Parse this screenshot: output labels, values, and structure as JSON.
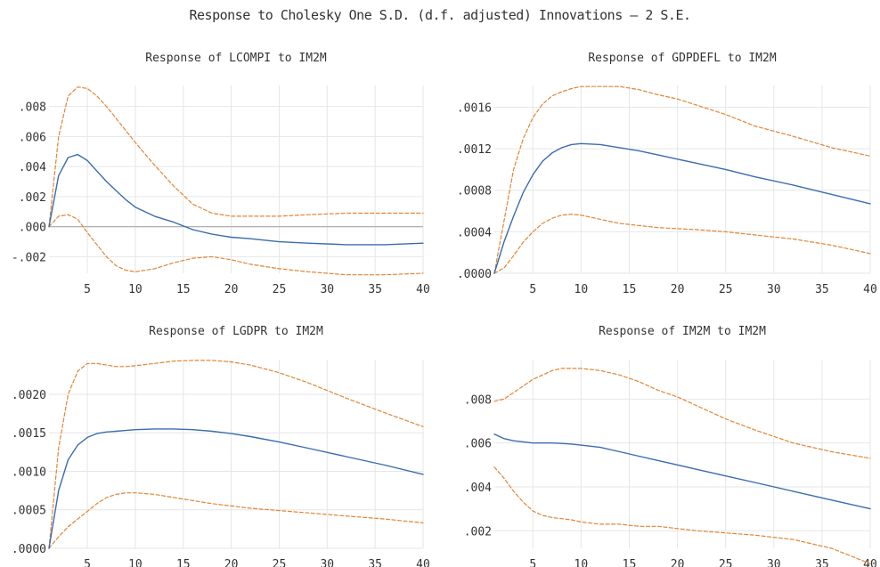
{
  "figure": {
    "title": "Response to Cholesky One S.D. (d.f. adjusted) Innovations – 2 S.E."
  },
  "colors": {
    "response": "#3a6cb0",
    "band": "#e08535",
    "grid": "#e6e6e6",
    "zero": "#a8a8a8",
    "text": "#333333"
  },
  "chart_data": [
    {
      "type": "line",
      "title": "Response of LCOMPI to IM2M",
      "xlim": [
        1,
        40
      ],
      "ylim": [
        -0.0031,
        0.0094
      ],
      "xticks": [
        5,
        10,
        15,
        20,
        25,
        30,
        35,
        40
      ],
      "xtick_labels": [
        "5",
        "10",
        "15",
        "20",
        "25",
        "30",
        "35",
        "40"
      ],
      "yticks": [
        -0.002,
        0,
        0.002,
        0.004,
        0.006,
        0.008
      ],
      "ytick_labels": [
        "-.002",
        ".000",
        ".002",
        ".004",
        ".006",
        ".008"
      ],
      "zero_line": true,
      "x": [
        1,
        2,
        3,
        4,
        5,
        6,
        7,
        8,
        9,
        10,
        12,
        14,
        16,
        18,
        20,
        22,
        25,
        28,
        32,
        36,
        40
      ],
      "series": [
        {
          "role": "response",
          "values": [
            0.0,
            0.0034,
            0.0046,
            0.0048,
            0.0044,
            0.0037,
            0.003,
            0.0024,
            0.0018,
            0.0013,
            0.0007,
            0.0003,
            -0.0002,
            -0.0005,
            -0.0007,
            -0.0008,
            -0.001,
            -0.0011,
            -0.0012,
            -0.0012,
            -0.0011
          ]
        },
        {
          "role": "upper",
          "values": [
            0.0,
            0.006,
            0.0087,
            0.0093,
            0.0092,
            0.0087,
            0.008,
            0.0072,
            0.0064,
            0.0056,
            0.0041,
            0.0027,
            0.0015,
            0.0009,
            0.0007,
            0.0007,
            0.0007,
            0.0008,
            0.0009,
            0.0009,
            0.0009
          ]
        },
        {
          "role": "lower",
          "values": [
            0.0,
            0.0007,
            0.0008,
            0.0005,
            -0.0004,
            -0.0012,
            -0.002,
            -0.0026,
            -0.0029,
            -0.003,
            -0.0028,
            -0.0024,
            -0.0021,
            -0.002,
            -0.0022,
            -0.0025,
            -0.0028,
            -0.003,
            -0.0032,
            -0.0032,
            -0.0031
          ]
        }
      ]
    },
    {
      "type": "line",
      "title": "Response of GDPDEFL to IM2M",
      "xlim": [
        1,
        40
      ],
      "ylim": [
        0,
        0.00181
      ],
      "xticks": [
        5,
        10,
        15,
        20,
        25,
        30,
        35,
        40
      ],
      "xtick_labels": [
        "5",
        "10",
        "15",
        "20",
        "25",
        "30",
        "35",
        "40"
      ],
      "yticks": [
        0,
        0.0004,
        0.0008,
        0.0012,
        0.0016
      ],
      "ytick_labels": [
        ".0000",
        ".0004",
        ".0008",
        ".0012",
        ".0016"
      ],
      "zero_line": false,
      "x": [
        1,
        2,
        3,
        4,
        5,
        6,
        7,
        8,
        9,
        10,
        12,
        14,
        16,
        18,
        20,
        22,
        25,
        28,
        32,
        36,
        40
      ],
      "series": [
        {
          "role": "response",
          "values": [
            0.0,
            0.0003,
            0.00055,
            0.00078,
            0.00095,
            0.00108,
            0.00116,
            0.00121,
            0.00124,
            0.00125,
            0.00124,
            0.00121,
            0.00118,
            0.00114,
            0.0011,
            0.00106,
            0.001,
            0.00093,
            0.00085,
            0.00076,
            0.00067
          ]
        },
        {
          "role": "upper",
          "values": [
            0.0,
            0.0005,
            0.001,
            0.0013,
            0.0015,
            0.00163,
            0.00171,
            0.00175,
            0.00178,
            0.0018,
            0.0018,
            0.0018,
            0.00177,
            0.00172,
            0.00168,
            0.00162,
            0.00153,
            0.00142,
            0.00132,
            0.00121,
            0.00113
          ]
        },
        {
          "role": "lower",
          "values": [
            0.0,
            5e-05,
            0.00017,
            0.0003,
            0.0004,
            0.00048,
            0.00053,
            0.00056,
            0.00057,
            0.00056,
            0.00052,
            0.00048,
            0.00046,
            0.00044,
            0.00043,
            0.00042,
            0.0004,
            0.00037,
            0.00033,
            0.00027,
            0.00019
          ]
        }
      ]
    },
    {
      "type": "line",
      "title": "Response of LGDPR to IM2M",
      "xlim": [
        1,
        40
      ],
      "ylim": [
        0,
        0.00245
      ],
      "xticks": [
        5,
        10,
        15,
        20,
        25,
        30,
        35,
        40
      ],
      "xtick_labels": [
        "5",
        "10",
        "15",
        "20",
        "25",
        "30",
        "35",
        "40"
      ],
      "yticks": [
        0,
        0.0005,
        0.001,
        0.0015,
        0.002
      ],
      "ytick_labels": [
        ".0000",
        ".0005",
        ".0010",
        ".0015",
        ".0020"
      ],
      "zero_line": false,
      "x": [
        1,
        2,
        3,
        4,
        5,
        6,
        7,
        8,
        9,
        10,
        12,
        14,
        16,
        18,
        20,
        22,
        25,
        28,
        32,
        36,
        40
      ],
      "series": [
        {
          "role": "response",
          "values": [
            0.0,
            0.00075,
            0.00115,
            0.00134,
            0.00144,
            0.00149,
            0.00151,
            0.00152,
            0.00153,
            0.00154,
            0.00155,
            0.00155,
            0.00154,
            0.00152,
            0.00149,
            0.00145,
            0.00138,
            0.0013,
            0.00119,
            0.00108,
            0.00096
          ]
        },
        {
          "role": "upper",
          "values": [
            0.0,
            0.0013,
            0.002,
            0.0023,
            0.0024,
            0.0024,
            0.00238,
            0.00236,
            0.00236,
            0.00237,
            0.0024,
            0.00243,
            0.00244,
            0.00244,
            0.00242,
            0.00238,
            0.00228,
            0.00215,
            0.00195,
            0.00176,
            0.00158
          ]
        },
        {
          "role": "lower",
          "values": [
            0.0,
            0.00015,
            0.00028,
            0.00038,
            0.00048,
            0.00058,
            0.00066,
            0.0007,
            0.00072,
            0.00072,
            0.0007,
            0.00066,
            0.00062,
            0.00058,
            0.00055,
            0.00052,
            0.00049,
            0.00046,
            0.00042,
            0.00038,
            0.00033
          ]
        }
      ]
    },
    {
      "type": "line",
      "title": "Response of IM2M to IM2M",
      "xlim": [
        1,
        40
      ],
      "ylim": [
        0.0012,
        0.0098
      ],
      "xticks": [
        5,
        10,
        15,
        20,
        25,
        30,
        35,
        40
      ],
      "xtick_labels": [
        "5",
        "10",
        "15",
        "20",
        "25",
        "30",
        "35",
        "40"
      ],
      "yticks": [
        0.002,
        0.004,
        0.006,
        0.008
      ],
      "ytick_labels": [
        ".002",
        ".004",
        ".006",
        ".008"
      ],
      "zero_line": false,
      "x": [
        1,
        2,
        3,
        4,
        5,
        6,
        7,
        8,
        9,
        10,
        12,
        14,
        16,
        18,
        20,
        22,
        25,
        28,
        32,
        36,
        40
      ],
      "series": [
        {
          "role": "response",
          "values": [
            0.0064,
            0.0062,
            0.0061,
            0.00605,
            0.006,
            0.006,
            0.006,
            0.00598,
            0.00595,
            0.0059,
            0.0058,
            0.0056,
            0.0054,
            0.0052,
            0.005,
            0.0048,
            0.0045,
            0.0042,
            0.0038,
            0.0034,
            0.003
          ]
        },
        {
          "role": "upper",
          "values": [
            0.0079,
            0.008,
            0.0083,
            0.0086,
            0.0089,
            0.0091,
            0.0093,
            0.0094,
            0.0094,
            0.0094,
            0.0093,
            0.0091,
            0.0088,
            0.0084,
            0.0081,
            0.0077,
            0.0071,
            0.0066,
            0.006,
            0.0056,
            0.0053
          ]
        },
        {
          "role": "lower",
          "values": [
            0.0049,
            0.0044,
            0.0038,
            0.0033,
            0.0029,
            0.0027,
            0.0026,
            0.00255,
            0.0025,
            0.0024,
            0.0023,
            0.0023,
            0.0022,
            0.0022,
            0.0021,
            0.002,
            0.0019,
            0.0018,
            0.0016,
            0.0012,
            0.0005
          ]
        }
      ]
    }
  ]
}
